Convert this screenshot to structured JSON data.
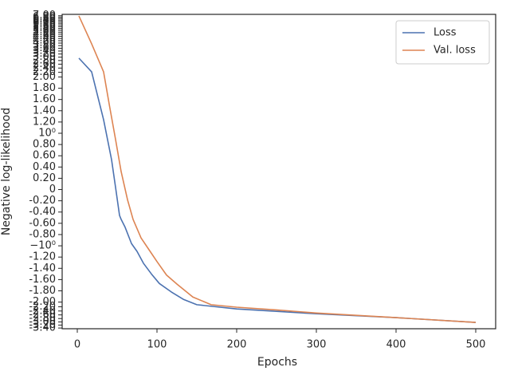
{
  "chart_data": {
    "type": "line",
    "xlabel": "Epochs",
    "ylabel": "Negative log-likelihood",
    "xlim": [
      -19,
      525
    ],
    "xticks": [
      0,
      100,
      200,
      300,
      400,
      500
    ],
    "ylim": [
      -3.45,
      7.2
    ],
    "yscale": "symlog",
    "linthresh": 2,
    "yticks": [
      {
        "value": -3.4,
        "label": "-3.40"
      },
      {
        "value": -3.2,
        "label": "-3.20"
      },
      {
        "value": -3.0,
        "label": "-3.00"
      },
      {
        "value": -2.8,
        "label": "-2.80"
      },
      {
        "value": -2.6,
        "label": "-2.60"
      },
      {
        "value": -2.4,
        "label": "-2.40"
      },
      {
        "value": -2.2,
        "label": "-2.20"
      },
      {
        "value": -2.0,
        "label": "-2.00"
      },
      {
        "value": -1.8,
        "label": "-1.80"
      },
      {
        "value": -1.6,
        "label": "-1.60"
      },
      {
        "value": -1.4,
        "label": "-1.40"
      },
      {
        "value": -1.2,
        "label": "-1.20"
      },
      {
        "value": -1,
        "label": "−10⁰"
      },
      {
        "value": -0.8,
        "label": "-0.80"
      },
      {
        "value": -0.6,
        "label": "-0.60"
      },
      {
        "value": -0.4,
        "label": "-0.40"
      },
      {
        "value": -0.2,
        "label": "-0.20"
      },
      0,
      {
        "value": 0.2,
        "label": "0.20"
      },
      {
        "value": 0.4,
        "label": "0.40"
      },
      {
        "value": 0.6,
        "label": "0.60"
      },
      {
        "value": 0.8,
        "label": "0.80"
      },
      {
        "value": 1,
        "label": "10⁰"
      },
      {
        "value": 1.2,
        "label": "1.20"
      },
      {
        "value": 1.4,
        "label": "1.40"
      },
      {
        "value": 1.6,
        "label": "1.60"
      },
      {
        "value": 1.8,
        "label": "1.80"
      },
      {
        "value": 2.0,
        "label": "2.00"
      },
      {
        "value": 2.2,
        "label": "2.20"
      },
      {
        "value": 2.4,
        "label": "2.40"
      },
      {
        "value": 2.6,
        "label": "2.60"
      },
      {
        "value": 2.8,
        "label": "2.80"
      },
      {
        "value": 3.0,
        "label": "3.00"
      },
      {
        "value": 3.2,
        "label": "3.20"
      },
      {
        "value": 3.4,
        "label": "3.40"
      },
      {
        "value": 3.6,
        "label": "3.60"
      },
      {
        "value": 3.8,
        "label": "3.80"
      },
      {
        "value": 4.0,
        "label": "4.00"
      },
      {
        "value": 4.2,
        "label": "4.20"
      },
      {
        "value": 4.4,
        "label": "4.40"
      },
      {
        "value": 4.6,
        "label": "4.60"
      },
      {
        "value": 4.8,
        "label": "4.80"
      },
      {
        "value": 5.0,
        "label": "5.00"
      },
      {
        "value": 5.2,
        "label": "5.20"
      },
      {
        "value": 5.4,
        "label": "5.40"
      },
      {
        "value": 5.6,
        "label": "5.60"
      },
      {
        "value": 5.8,
        "label": "5.80"
      },
      {
        "value": 6.0,
        "label": "6.00"
      },
      {
        "value": 6.2,
        "label": "6.20"
      },
      {
        "value": 6.4,
        "label": "6.40"
      },
      {
        "value": 6.6,
        "label": "6.60"
      },
      {
        "value": 6.8,
        "label": "6.80"
      },
      {
        "value": 7.0,
        "label": "7.00"
      }
    ],
    "legend": "upper right",
    "series": [
      {
        "name": "Loss",
        "color": "#4c72b0",
        "x": [
          2,
          18,
          33,
          43,
          48,
          53,
          55,
          60,
          68,
          75,
          83,
          93,
          103,
          118,
          133,
          150,
          200,
          300,
          400,
          500
        ],
        "values": [
          2.94,
          2.22,
          1.24,
          0.53,
          0.04,
          -0.46,
          -0.53,
          -0.67,
          -0.96,
          -1.1,
          -1.31,
          -1.5,
          -1.67,
          -1.82,
          -1.95,
          -2.11,
          -2.3,
          -2.54,
          -2.75,
          -3.03
        ]
      },
      {
        "name": "Val. loss",
        "color": "#dd8452",
        "x": [
          2,
          18,
          33,
          40,
          48,
          55,
          63,
          70,
          80,
          90,
          100,
          112,
          125,
          145,
          168,
          200,
          250,
          300,
          400,
          500
        ],
        "values": [
          6.98,
          3.94,
          2.22,
          1.52,
          0.89,
          0.32,
          -0.18,
          -0.53,
          -0.86,
          -1.07,
          -1.28,
          -1.52,
          -1.68,
          -1.91,
          -2.11,
          -2.22,
          -2.35,
          -2.5,
          -2.75,
          -3.03
        ]
      }
    ]
  }
}
